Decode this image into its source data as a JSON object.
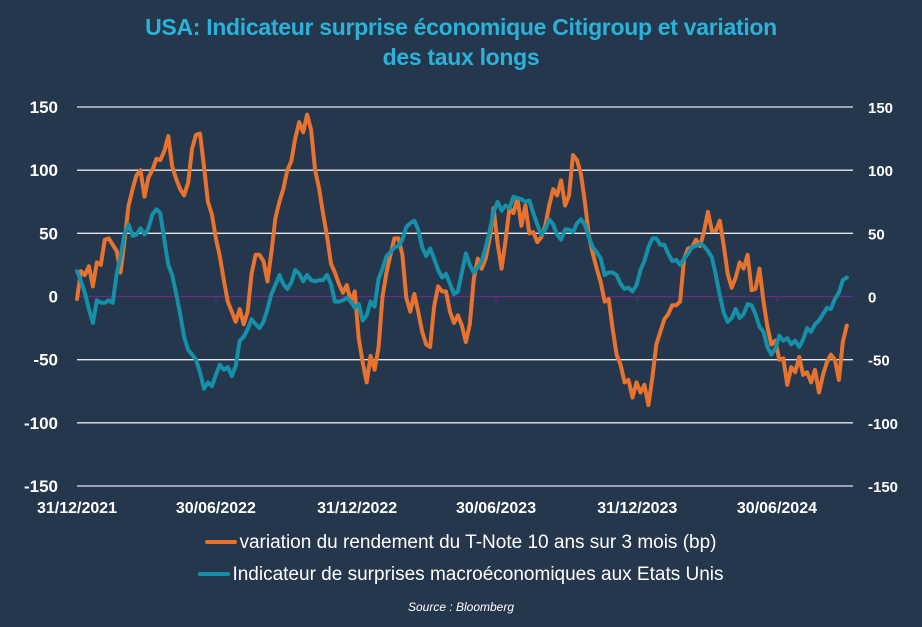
{
  "chart_data": {
    "type": "line",
    "title_line1": "USA: Indicateur surprise économique Citigroup et variation",
    "title_line2": "des taux longs",
    "xlabel": "",
    "ylabel": "",
    "ylim": [
      -150,
      150
    ],
    "y_ticks": [
      150,
      100,
      50,
      0,
      -50,
      -100,
      -150
    ],
    "y_tick_labels": [
      "150",
      "100",
      "50",
      "0",
      "-50",
      "-100",
      "-150"
    ],
    "y2_tick_labels": [
      "150",
      "100",
      "50",
      "0",
      "-50",
      "-100",
      "-150"
    ],
    "x_ticks": [
      {
        "label": "31/12/2021",
        "date": "2021-12-31"
      },
      {
        "label": "30/06/2022",
        "date": "2022-06-30"
      },
      {
        "label": "31/12/2022",
        "date": "2022-12-31"
      },
      {
        "label": "30/06/2023",
        "date": "2023-06-30"
      },
      {
        "label": "31/12/2023",
        "date": "2023-12-31"
      },
      {
        "label": "30/06/2024",
        "date": "2024-06-30"
      }
    ],
    "x_start": "2021-12-31",
    "x_step_days": 5.17,
    "grid": true,
    "legend_position": "bottom",
    "source": "Source : Bloomberg",
    "series": [
      {
        "name": "variation du rendement du T-Note 10 ans sur 3 mois (bp)",
        "color": "#e8732f",
        "values": [
          -2,
          20,
          17,
          24,
          8,
          27,
          25,
          45,
          46,
          41,
          36,
          19,
          45,
          72,
          85,
          96,
          100,
          79,
          94,
          100,
          109,
          108,
          115,
          127,
          103,
          93,
          85,
          80,
          90,
          117,
          128,
          129,
          103,
          75,
          65,
          46,
          32,
          13,
          -4,
          -12,
          -20,
          -10,
          -22,
          -12,
          18,
          33,
          33,
          28,
          12,
          35,
          62,
          75,
          85,
          100,
          107,
          125,
          138,
          130,
          144,
          132,
          100,
          86,
          66,
          48,
          26,
          19,
          10,
          3,
          9,
          -4,
          4,
          -33,
          -52,
          -68,
          -47,
          -58,
          -40,
          0,
          19,
          33,
          46,
          46,
          33,
          -1,
          -12,
          2,
          -12,
          -28,
          -38,
          -40,
          -8,
          8,
          4,
          4,
          -12,
          -21,
          -15,
          -23,
          -36,
          -22,
          14,
          30,
          22,
          30,
          46,
          70,
          42,
          22,
          44,
          70,
          66,
          78,
          56,
          72,
          50,
          51,
          43,
          47,
          56,
          72,
          85,
          80,
          92,
          72,
          80,
          112,
          108,
          97,
          75,
          48,
          34,
          22,
          11,
          -4,
          -2,
          -26,
          -46,
          -54,
          -68,
          -66,
          -80,
          -68,
          -76,
          -70,
          -86,
          -64,
          -38,
          -28,
          -18,
          -14,
          -7,
          -7,
          -4,
          30,
          38,
          39,
          45,
          40,
          51,
          67,
          52,
          52,
          60,
          40,
          18,
          7,
          15,
          27,
          22,
          33,
          5,
          6,
          22,
          -4,
          -24,
          -38,
          -35,
          -50,
          -49,
          -70,
          -56,
          -60,
          -48,
          -62,
          -60,
          -68,
          -58,
          -76,
          -62,
          -52,
          -46,
          -50,
          -66,
          -36,
          -23
        ]
      },
      {
        "name": "Indicateur de surprises macroéconomiques aux Etats Unis",
        "color": "#1590a8",
        "values": [
          20,
          12,
          3,
          -10,
          -21,
          -3,
          -5,
          -5,
          -3,
          -5,
          18,
          32,
          50,
          57,
          48,
          49,
          54,
          49,
          54,
          65,
          69,
          66,
          45,
          25,
          17,
          2,
          -14,
          -32,
          -42,
          -46,
          -50,
          -60,
          -73,
          -68,
          -71,
          -62,
          -54,
          -58,
          -56,
          -63,
          -55,
          -35,
          -32,
          -26,
          -18,
          -22,
          -25,
          -20,
          -10,
          2,
          9,
          17,
          10,
          6,
          11,
          21,
          18,
          12,
          17,
          13,
          12,
          13,
          13,
          17,
          10,
          -4,
          -4,
          -3,
          -1,
          -4,
          -9,
          -6,
          -19,
          -15,
          -4,
          -8,
          14,
          22,
          32,
          35,
          39,
          40,
          45,
          55,
          58,
          60,
          53,
          39,
          32,
          38,
          30,
          21,
          15,
          18,
          10,
          2,
          4,
          19,
          34,
          25,
          19,
          23,
          28,
          39,
          52,
          67,
          75,
          68,
          72,
          70,
          79,
          78,
          77,
          75,
          76,
          66,
          57,
          49,
          53,
          61,
          57,
          49,
          45,
          53,
          53,
          51,
          58,
          61,
          57,
          47,
          39,
          35,
          30,
          17,
          19,
          19,
          17,
          10,
          6,
          7,
          4,
          9,
          21,
          28,
          39,
          46,
          46,
          41,
          41,
          34,
          28,
          29,
          25,
          30,
          34,
          39,
          40,
          42,
          40,
          36,
          31,
          17,
          1,
          -13,
          -20,
          -17,
          -10,
          -17,
          -14,
          -6,
          -7,
          -14,
          -24,
          -28,
          -40,
          -46,
          -41,
          -31,
          -35,
          -33,
          -38,
          -35,
          -40,
          -34,
          -25,
          -28,
          -22,
          -19,
          -14,
          -9,
          -10,
          -2,
          3,
          13,
          15
        ]
      }
    ]
  }
}
